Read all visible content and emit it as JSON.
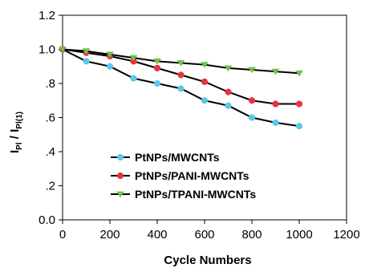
{
  "chart_data": {
    "type": "line",
    "xlabel": "Cycle Numbers",
    "ylabel_main": "I",
    "ylabel_sub_num": "Pl",
    "ylabel_sep": " / I",
    "ylabel_sub_den": "Pl(1)",
    "xlim": [
      0,
      1200
    ],
    "ylim": [
      0.0,
      1.2
    ],
    "xticks": [
      0,
      200,
      400,
      600,
      800,
      1000,
      1200
    ],
    "xtick_labels": [
      "0",
      "200",
      "400",
      "600",
      "800",
      "1000",
      "1200"
    ],
    "yticks": [
      0.0,
      0.2,
      0.4,
      0.6,
      0.8,
      1.0,
      1.2
    ],
    "ytick_labels": [
      "0.0",
      ".2",
      ".4",
      ".6",
      ".8",
      "1.0",
      "1.2"
    ],
    "grid": false,
    "legend_position": "bottom-left",
    "x": [
      0,
      100,
      200,
      300,
      400,
      500,
      600,
      700,
      800,
      900,
      1000
    ],
    "series": [
      {
        "name": "PtNPs/MWCNTs",
        "marker": "circle",
        "color": "#5bc8e6",
        "values": [
          1.0,
          0.93,
          0.9,
          0.83,
          0.8,
          0.77,
          0.7,
          0.67,
          0.6,
          0.57,
          0.55
        ]
      },
      {
        "name": "PtNPs/PANI-MWCNTs",
        "marker": "circle",
        "color": "#e8333a",
        "values": [
          1.0,
          0.98,
          0.96,
          0.93,
          0.89,
          0.85,
          0.81,
          0.75,
          0.7,
          0.68,
          0.68
        ]
      },
      {
        "name": "PtNPs/TPANI-MWCNTs",
        "marker": "triangle-down",
        "color": "#6cc24a",
        "values": [
          1.0,
          0.99,
          0.97,
          0.95,
          0.93,
          0.92,
          0.91,
          0.89,
          0.88,
          0.87,
          0.86
        ]
      }
    ]
  }
}
